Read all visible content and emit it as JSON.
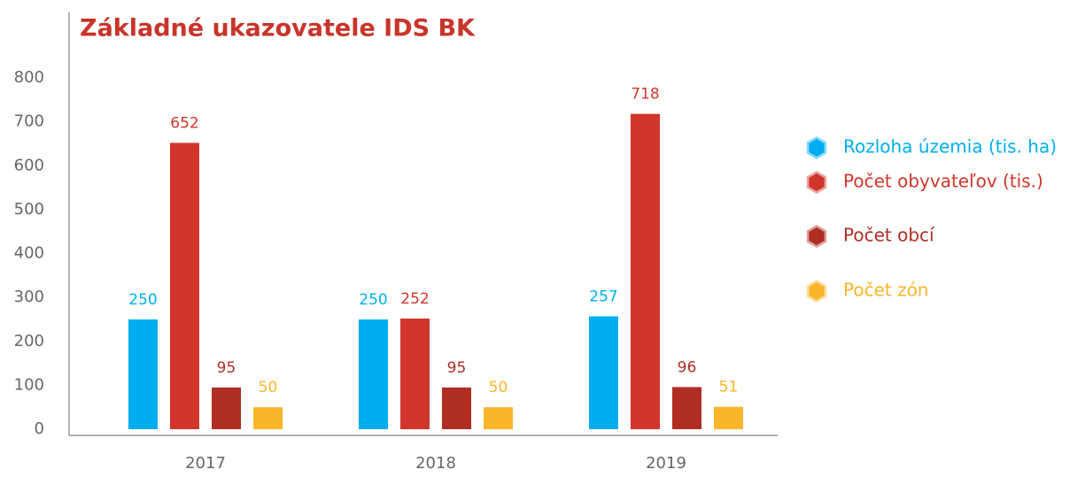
{
  "chart_data": {
    "type": "bar",
    "title": "Základné ukazovatele IDS BK",
    "categories": [
      "2017",
      "2018",
      "2019"
    ],
    "series": [
      {
        "name": "Rozloha územia (tis. ha)",
        "color": "#00aeef",
        "values": [
          250,
          250,
          257
        ]
      },
      {
        "name": "Počet obyvateľov (tis.)",
        "color": "#d0362c",
        "values": [
          652,
          252,
          718
        ]
      },
      {
        "name": "Počet obcí",
        "color": "#b02d24",
        "values": [
          95,
          95,
          96
        ]
      },
      {
        "name": "Počet zón",
        "color": "#fbb52b",
        "values": [
          50,
          50,
          51
        ]
      }
    ],
    "ylim": [
      0,
      800
    ],
    "yticks": [
      0,
      100,
      200,
      300,
      400,
      500,
      600,
      700,
      800
    ],
    "legend": "right"
  }
}
